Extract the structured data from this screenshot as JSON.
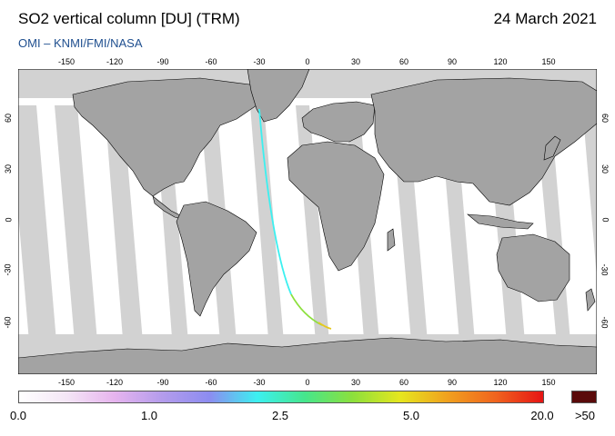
{
  "header": {
    "title": "SO2 vertical column [DU] (TRM)",
    "date": "24 March 2021",
    "credit": "OMI  –  KNMI/FMI/NASA"
  },
  "map": {
    "lon_ticks": [
      "-150",
      "-120",
      "-90",
      "-60",
      "-30",
      "0",
      "30",
      "60",
      "90",
      "120",
      "150"
    ],
    "lat_ticks": [
      "60",
      "30",
      "0",
      "-30",
      "-60"
    ],
    "colors": {
      "land": "#a3a3a3",
      "no_data": "#d2d2d2",
      "data_background": "#ffffff",
      "coastline": "#000000"
    }
  },
  "colorbar": {
    "labels": [
      "0.0",
      "1.0",
      "2.5",
      "5.0",
      "20.0"
    ],
    "overflow_label": ">50",
    "overflow_color": "#5a0a0a",
    "stops": [
      "#ffffff",
      "#f4e6f6",
      "#e6b4ee",
      "#b49cec",
      "#8c8cf0",
      "#3cf0f0",
      "#46e68c",
      "#8ce03c",
      "#e6e61e",
      "#f0a01e",
      "#f0641e",
      "#e61414"
    ]
  }
}
